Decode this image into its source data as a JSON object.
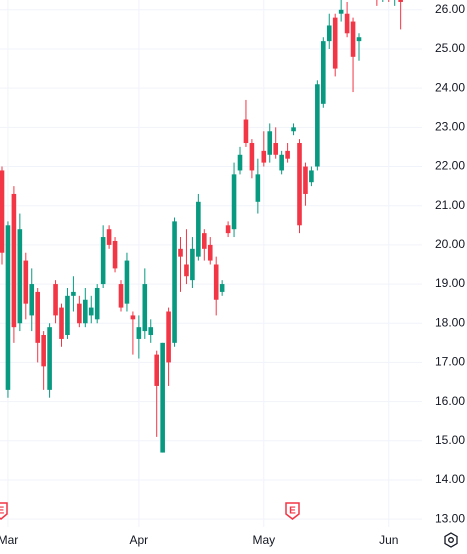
{
  "chart_data": {
    "type": "candlestick",
    "categories": [
      null,
      "Mar",
      null,
      null,
      null,
      null,
      null,
      null,
      null,
      null,
      null,
      null,
      null,
      null,
      null,
      null,
      null,
      null,
      null,
      null,
      null,
      null,
      null,
      "Apr",
      null,
      null,
      null,
      null,
      null,
      null,
      null,
      null,
      null,
      null,
      null,
      null,
      null,
      null,
      null,
      null,
      null,
      null,
      null,
      null,
      "May",
      null,
      null,
      null,
      null,
      null,
      null,
      null,
      null,
      null,
      null,
      null,
      null,
      null,
      null,
      null,
      null,
      null,
      null,
      null,
      null,
      "Jun",
      null,
      null
    ],
    "open": [
      21.9,
      16.3,
      21.3,
      18.0,
      19.6,
      18.2,
      18.8,
      17.7,
      16.3,
      19.0,
      18.4,
      17.7,
      18.7,
      18.5,
      18.0,
      18.2,
      18.1,
      19.0,
      20.4,
      20.1,
      19.0,
      18.5,
      18.2,
      17.6,
      17.8,
      17.7,
      17.2,
      14.7,
      18.3,
      17.5,
      19.9,
      19.5,
      19.1,
      19.7,
      20.3,
      20.0,
      19.5,
      18.8,
      20.5,
      20.4,
      21.9,
      23.2,
      22.6,
      21.1,
      22.4,
      22.3,
      22.6,
      21.9,
      22.4,
      22.9,
      22.6,
      22.0,
      21.6,
      22.0,
      23.6,
      25.2,
      25.8,
      25.9,
      25.9,
      25.7,
      25.2,
      26.8,
      26.9,
      27.1,
      26.5,
      26.9,
      26.4,
      26.8
    ],
    "high": [
      22.0,
      20.6,
      21.5,
      20.8,
      19.8,
      19.4,
      18.9,
      17.8,
      18.0,
      19.1,
      18.5,
      18.9,
      19.2,
      18.7,
      18.9,
      18.7,
      19.0,
      20.5,
      20.5,
      20.2,
      19.1,
      19.8,
      18.3,
      18.2,
      19.4,
      18.1,
      17.3,
      17.5,
      18.4,
      20.7,
      20.2,
      20.4,
      20.2,
      21.3,
      20.4,
      20.2,
      19.7,
      19.1,
      20.6,
      22.1,
      22.5,
      23.7,
      22.7,
      22.2,
      22.9,
      23.1,
      23.0,
      22.4,
      22.6,
      23.1,
      22.7,
      22.1,
      22.0,
      24.2,
      25.3,
      25.9,
      25.9,
      26.5,
      26.2,
      25.8,
      25.4,
      27.1,
      27.2,
      27.3,
      26.9,
      27.0,
      26.9,
      27.0
    ],
    "low": [
      19.5,
      16.1,
      17.5,
      17.8,
      18.1,
      17.8,
      17.0,
      16.3,
      16.1,
      18.0,
      17.4,
      17.6,
      18.3,
      17.9,
      17.9,
      18.0,
      18.0,
      18.9,
      19.9,
      19.3,
      18.3,
      18.3,
      17.2,
      17.1,
      17.6,
      17.5,
      15.1,
      14.7,
      16.4,
      17.4,
      18.8,
      19.0,
      18.9,
      19.6,
      19.6,
      19.5,
      18.2,
      18.7,
      20.2,
      20.2,
      21.8,
      22.5,
      21.7,
      20.8,
      22.0,
      22.1,
      22.2,
      21.8,
      22.1,
      22.8,
      20.3,
      21.0,
      21.5,
      21.9,
      23.5,
      25.0,
      24.3,
      25.7,
      25.3,
      23.9,
      24.7,
      26.3,
      26.4,
      26.1,
      26.2,
      26.2,
      26.1,
      25.5
    ],
    "close": [
      19.8,
      20.5,
      17.9,
      20.4,
      18.5,
      19.0,
      17.5,
      16.9,
      17.9,
      18.2,
      17.6,
      18.7,
      18.8,
      18.0,
      18.6,
      18.4,
      18.9,
      20.2,
      20.0,
      19.4,
      18.4,
      19.6,
      18.1,
      17.9,
      19.0,
      17.9,
      16.4,
      17.5,
      17.0,
      20.6,
      19.7,
      19.2,
      19.9,
      21.1,
      19.9,
      19.6,
      18.6,
      19.0,
      20.3,
      21.8,
      22.3,
      22.6,
      21.9,
      21.8,
      22.1,
      22.9,
      22.3,
      22.3,
      22.2,
      23.0,
      20.5,
      21.3,
      21.9,
      24.1,
      25.2,
      25.6,
      24.5,
      26.0,
      25.4,
      24.8,
      25.3,
      26.6,
      27.0,
      26.4,
      26.8,
      26.3,
      26.7,
      26.2
    ],
    "up_color": "#089981",
    "down_color": "#f23645",
    "ylim": [
      12.8,
      26.25
    ],
    "yticks": [
      {
        "value": 13,
        "label": "13.00"
      },
      {
        "value": 14,
        "label": "14.00"
      },
      {
        "value": 15,
        "label": "15.00"
      },
      {
        "value": 16,
        "label": "16.00"
      },
      {
        "value": 17,
        "label": "17.00"
      },
      {
        "value": 18,
        "label": "18.00"
      },
      {
        "value": 19,
        "label": "19.00"
      },
      {
        "value": 20,
        "label": "20.00"
      },
      {
        "value": 21,
        "label": "21.00"
      },
      {
        "value": 22,
        "label": "22.00"
      },
      {
        "value": 23,
        "label": "23.00"
      },
      {
        "value": 24,
        "label": "24.00"
      },
      {
        "value": 25,
        "label": "25.00"
      },
      {
        "value": 26,
        "label": "26.00"
      }
    ],
    "grid": true,
    "annotations": [
      "E",
      "E"
    ]
  }
}
